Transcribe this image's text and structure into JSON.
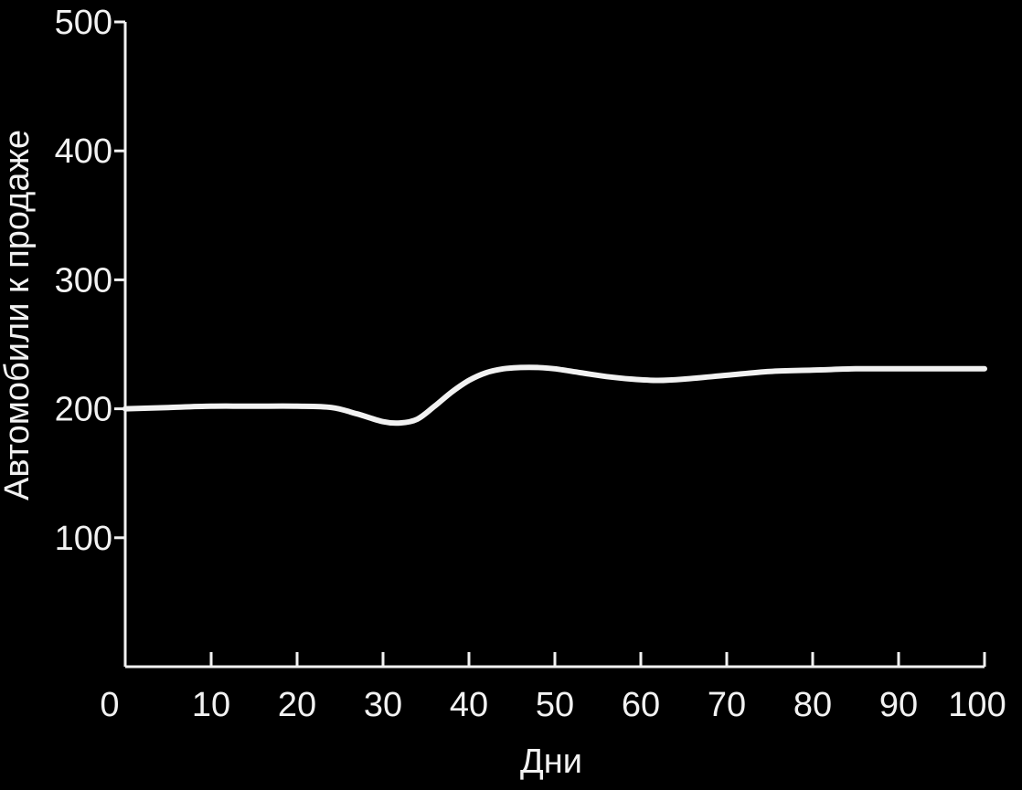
{
  "chart_data": {
    "type": "line",
    "title": "",
    "xlabel": "Дни",
    "ylabel": "Автомобили к продаже",
    "xlim": [
      0,
      100
    ],
    "ylim": [
      0,
      500
    ],
    "x_ticks": [
      0,
      10,
      20,
      30,
      40,
      50,
      60,
      70,
      80,
      90,
      100
    ],
    "y_ticks": [
      100,
      200,
      300,
      400,
      500
    ],
    "grid": false,
    "legend": "none",
    "colors": {
      "background": "#000000",
      "foreground": "#f2f2f2"
    },
    "series": [
      {
        "x": [
          0,
          5,
          10,
          15,
          20,
          24,
          27,
          30,
          32,
          34,
          36,
          38,
          40,
          42,
          44,
          46,
          48,
          50,
          53,
          56,
          59,
          62,
          65,
          70,
          75,
          80,
          85,
          90,
          95,
          100
        ],
        "values": [
          200,
          201,
          202,
          202,
          202,
          201,
          196,
          190,
          189,
          192,
          202,
          213,
          222,
          228,
          231,
          232,
          232,
          231,
          228,
          225,
          223,
          222,
          223,
          226,
          229,
          230,
          231,
          231,
          231,
          231
        ]
      }
    ]
  }
}
